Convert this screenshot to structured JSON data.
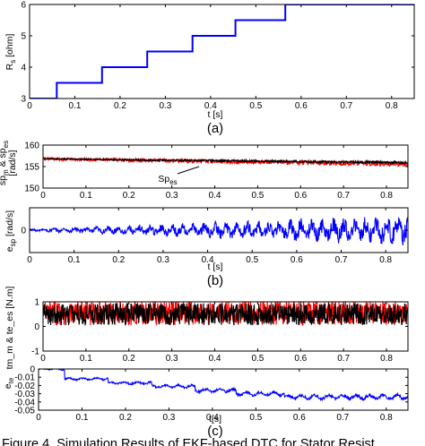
{
  "figure": {
    "caption": "Figure 4. Simulation Results of EKF-based DTC for Stator Resist"
  },
  "chart_data": [
    {
      "type": "line",
      "panel_label": "(a)",
      "xlabel": "t [s]",
      "ylabel": "R_s [ohm]",
      "ylabel_main": "R",
      "ylabel_sub": "s",
      "ylabel_tail": " [ohm]",
      "xlim": [
        0,
        0.85
      ],
      "ylim": [
        3,
        6
      ],
      "xticks": [
        0,
        0.1,
        0.2,
        0.3,
        0.4,
        0.5,
        0.6,
        0.7,
        0.8
      ],
      "xtick_labels": [
        "0",
        "0.1",
        "0.2",
        "0.3",
        "0.4",
        "0.5",
        "0.6",
        "0.7",
        "0.8"
      ],
      "yticks": [
        3,
        4,
        5,
        6
      ],
      "ytick_labels": [
        "3",
        "4",
        "5",
        "6"
      ],
      "series": [
        {
          "color": "#0000ff",
          "style": "step",
          "x": [
            0,
            0.06,
            0.06,
            0.16,
            0.16,
            0.26,
            0.26,
            0.36,
            0.36,
            0.455,
            0.455,
            0.565,
            0.565,
            0.85
          ],
          "y": [
            3,
            3,
            3.5,
            3.5,
            4,
            4,
            4.5,
            4.5,
            5,
            5,
            5.5,
            5.5,
            6,
            6
          ]
        }
      ]
    },
    {
      "type": "line",
      "xlabel": "",
      "ylabel": "sp_m & sp_es [rad/s]",
      "ylabel_lines": [
        "sp",
        "m",
        " & sp",
        "es",
        "[rad/s]"
      ],
      "xlim": [
        0,
        0.85
      ],
      "ylim": [
        150,
        160
      ],
      "xticks": [
        0,
        0.1,
        0.2,
        0.3,
        0.4,
        0.5,
        0.6,
        0.7,
        0.8
      ],
      "xtick_labels": [
        "0",
        "0.1",
        "0.2",
        "0.3",
        "0.4",
        "0.5",
        "0.6",
        "0.7",
        "0.8"
      ],
      "yticks": [
        150,
        155,
        160
      ],
      "ytick_labels": [
        "150",
        "155",
        "160"
      ],
      "annotation": {
        "main": "Sp",
        "sub": "es",
        "x": 0.46,
        "y": 156.4
      },
      "series": [
        {
          "color": "#ff0000",
          "kind": "noisy",
          "base_start": 156.8,
          "base_end": 155.6,
          "amp": [
            0.3,
            0.6
          ]
        },
        {
          "color": "#000000",
          "kind": "noisy",
          "base_start": 156.8,
          "base_end": 155.9,
          "amp": [
            0.15,
            0.3
          ]
        }
      ]
    },
    {
      "type": "line",
      "panel_label": "(b)",
      "xlabel": "t [s]",
      "ylabel": "e_sp [rad/s]",
      "ylabel_main": "e",
      "ylabel_sub": "sp",
      "ylabel_tail": " [rad/s]",
      "xlim": [
        0,
        0.85
      ],
      "ylim": [
        -1,
        1
      ],
      "xticks": [
        0,
        0.1,
        0.2,
        0.3,
        0.4,
        0.5,
        0.6,
        0.7,
        0.8
      ],
      "xtick_labels": [
        "0",
        "0.1",
        "0.2",
        "0.3",
        "0.4",
        "0.5",
        "0.6",
        "0.7",
        "0.8"
      ],
      "yticks": [
        0
      ],
      "ytick_labels": [
        "0"
      ],
      "series": [
        {
          "color": "#0000ff",
          "kind": "growing_noise",
          "base": 0,
          "amp": [
            0.05,
            0.6
          ],
          "steps": [
            0.06,
            0.16,
            0.26,
            0.36,
            0.455,
            0.565
          ]
        }
      ]
    },
    {
      "type": "line",
      "xlabel": "",
      "ylabel": "tm_m & te_es [N.m]",
      "xlim": [
        0,
        0.85
      ],
      "ylim": [
        -1,
        1
      ],
      "xticks": [
        0,
        0.1,
        0.2,
        0.3,
        0.4,
        0.5,
        0.6,
        0.7,
        0.8
      ],
      "xtick_labels": [
        "0",
        "0.1",
        "0.2",
        "0.3",
        "0.4",
        "0.5",
        "0.6",
        "0.7",
        "0.8"
      ],
      "yticks": [
        -1,
        0,
        1
      ],
      "ytick_labels": [
        "-1",
        "0",
        "1"
      ],
      "series": [
        {
          "color": "#ff0000",
          "kind": "noisy",
          "base_start": 0.55,
          "base_end": 0.55,
          "amp": [
            0.5,
            0.5
          ]
        },
        {
          "color": "#000000",
          "kind": "noisy",
          "base_start": 0.5,
          "base_end": 0.5,
          "amp": [
            0.45,
            0.45
          ]
        }
      ]
    },
    {
      "type": "line",
      "panel_label": "(c)",
      "xlabel": "t[s]",
      "ylabel": "e_te",
      "ylabel_main": "e",
      "ylabel_sub": "te",
      "xlim": [
        0,
        0.85
      ],
      "ylim": [
        -0.05,
        0
      ],
      "xticks": [
        0,
        0.1,
        0.2,
        0.3,
        0.4,
        0.5,
        0.6,
        0.7,
        0.8
      ],
      "xtick_labels": [
        "0",
        "0.1",
        "0.2",
        "0.3",
        "0.4",
        "0.5",
        "0.6",
        "0.7",
        "0.8"
      ],
      "yticks": [
        -0.05,
        -0.04,
        -0.03,
        -0.02,
        -0.01,
        0
      ],
      "ytick_labels": [
        "-0.05",
        "-0.04",
        "-0.03",
        "-0.02",
        "-0.01",
        "0"
      ],
      "series": [
        {
          "color": "#0000ff",
          "kind": "drift",
          "steps": [
            0.06,
            0.16,
            0.26,
            0.36,
            0.455,
            0.565
          ],
          "levels": [
            0,
            -0.012,
            -0.017,
            -0.021,
            -0.026,
            -0.03,
            -0.034
          ],
          "amp": [
            0.0015,
            0.004
          ]
        }
      ]
    }
  ]
}
